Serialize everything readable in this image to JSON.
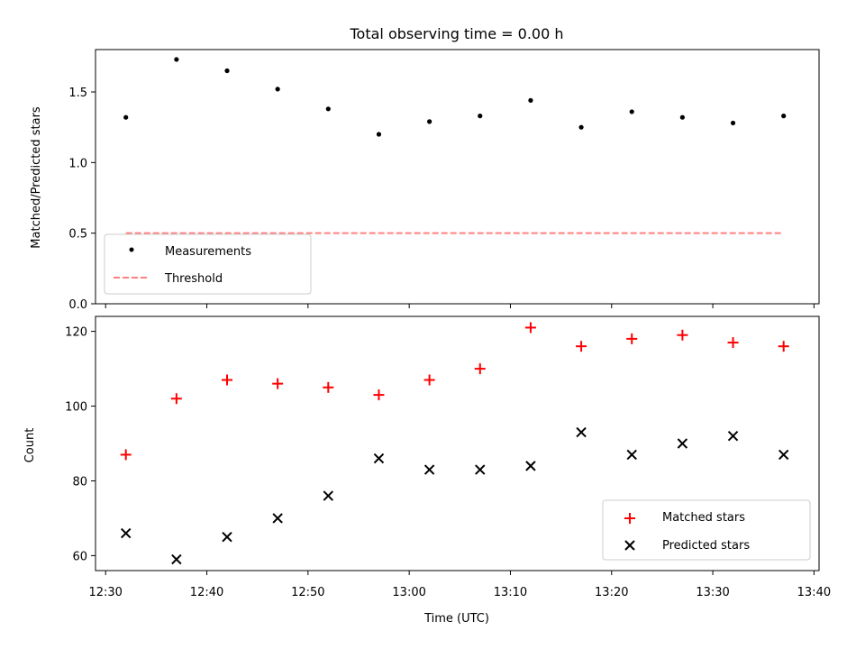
{
  "chart_data": [
    {
      "type": "scatter",
      "title": "Total observing time = 0.00 h",
      "xlabel": "",
      "ylabel": "Matched/Predicted stars",
      "ylim": [
        0,
        1.8
      ],
      "xlim": [
        "12:29:00",
        "13:40:30"
      ],
      "yticks": [
        "0.0",
        "0.5",
        "1.0",
        "1.5"
      ],
      "grid": false,
      "legend_position": "lower-left",
      "x": [
        "12:32",
        "12:37",
        "12:42",
        "12:47",
        "12:52",
        "12:57",
        "13:02",
        "13:07",
        "13:12",
        "13:17",
        "13:22",
        "13:27",
        "13:32",
        "13:37"
      ],
      "series": [
        {
          "name": "Measurements",
          "marker": "dot",
          "color": "#000000",
          "values": [
            1.32,
            1.73,
            1.65,
            1.52,
            1.38,
            1.2,
            1.29,
            1.33,
            1.44,
            1.25,
            1.36,
            1.32,
            1.28,
            1.33
          ]
        },
        {
          "name": "Threshold",
          "marker": "dashed-line",
          "color": "#ff8080",
          "values": [
            0.5,
            0.5,
            0.5,
            0.5,
            0.5,
            0.5,
            0.5,
            0.5,
            0.5,
            0.5,
            0.5,
            0.5,
            0.5,
            0.5
          ]
        }
      ]
    },
    {
      "type": "scatter",
      "title": "",
      "xlabel": "Time (UTC)",
      "ylabel": "Count",
      "ylim": [
        56,
        124
      ],
      "xlim": [
        "12:29:00",
        "13:40:30"
      ],
      "yticks": [
        "60",
        "80",
        "100",
        "120"
      ],
      "xticks": [
        "12:30",
        "12:40",
        "12:50",
        "13:00",
        "13:10",
        "13:20",
        "13:30",
        "13:40"
      ],
      "grid": false,
      "legend_position": "lower-right",
      "x": [
        "12:32",
        "12:37",
        "12:42",
        "12:47",
        "12:52",
        "12:57",
        "13:02",
        "13:07",
        "13:12",
        "13:17",
        "13:22",
        "13:27",
        "13:32",
        "13:37"
      ],
      "series": [
        {
          "name": "Matched stars",
          "marker": "plus",
          "color": "#ff0000",
          "values": [
            87,
            102,
            107,
            106,
            105,
            103,
            107,
            110,
            121,
            116,
            118,
            119,
            117,
            116
          ]
        },
        {
          "name": "Predicted stars",
          "marker": "x",
          "color": "#000000",
          "values": [
            66,
            59,
            65,
            70,
            76,
            86,
            83,
            83,
            84,
            93,
            87,
            90,
            92,
            87
          ]
        }
      ]
    }
  ]
}
